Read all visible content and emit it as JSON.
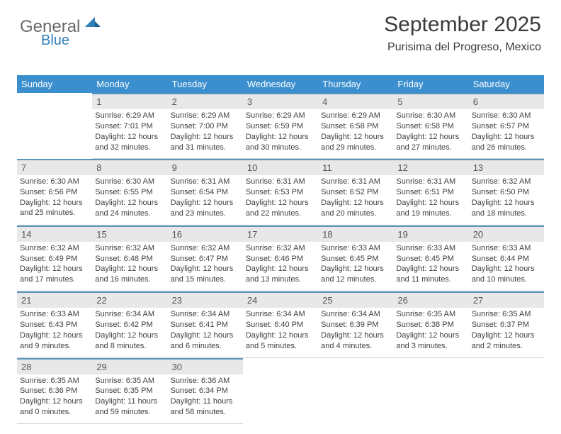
{
  "logo": {
    "text1": "General",
    "text2": "Blue",
    "color_gray": "#6a6a6a",
    "color_blue": "#2e7fbb"
  },
  "header": {
    "title": "September 2025",
    "subtitle": "Purisima del Progreso, Mexico"
  },
  "dow_header": {
    "bg": "#3b8fce",
    "fg": "#ffffff"
  },
  "daynum_bar": {
    "bg": "#e8e8e8",
    "border_top": "#5b94bc"
  },
  "days_of_week": [
    "Sunday",
    "Monday",
    "Tuesday",
    "Wednesday",
    "Thursday",
    "Friday",
    "Saturday"
  ],
  "rows": [
    [
      null,
      {
        "n": "1",
        "sr": "6:29 AM",
        "ss": "7:01 PM",
        "dl": "12 hours and 32 minutes."
      },
      {
        "n": "2",
        "sr": "6:29 AM",
        "ss": "7:00 PM",
        "dl": "12 hours and 31 minutes."
      },
      {
        "n": "3",
        "sr": "6:29 AM",
        "ss": "6:59 PM",
        "dl": "12 hours and 30 minutes."
      },
      {
        "n": "4",
        "sr": "6:29 AM",
        "ss": "6:58 PM",
        "dl": "12 hours and 29 minutes."
      },
      {
        "n": "5",
        "sr": "6:30 AM",
        "ss": "6:58 PM",
        "dl": "12 hours and 27 minutes."
      },
      {
        "n": "6",
        "sr": "6:30 AM",
        "ss": "6:57 PM",
        "dl": "12 hours and 26 minutes."
      }
    ],
    [
      {
        "n": "7",
        "sr": "6:30 AM",
        "ss": "6:56 PM",
        "dl": "12 hours and 25 minutes."
      },
      {
        "n": "8",
        "sr": "6:30 AM",
        "ss": "6:55 PM",
        "dl": "12 hours and 24 minutes."
      },
      {
        "n": "9",
        "sr": "6:31 AM",
        "ss": "6:54 PM",
        "dl": "12 hours and 23 minutes."
      },
      {
        "n": "10",
        "sr": "6:31 AM",
        "ss": "6:53 PM",
        "dl": "12 hours and 22 minutes."
      },
      {
        "n": "11",
        "sr": "6:31 AM",
        "ss": "6:52 PM",
        "dl": "12 hours and 20 minutes."
      },
      {
        "n": "12",
        "sr": "6:31 AM",
        "ss": "6:51 PM",
        "dl": "12 hours and 19 minutes."
      },
      {
        "n": "13",
        "sr": "6:32 AM",
        "ss": "6:50 PM",
        "dl": "12 hours and 18 minutes."
      }
    ],
    [
      {
        "n": "14",
        "sr": "6:32 AM",
        "ss": "6:49 PM",
        "dl": "12 hours and 17 minutes."
      },
      {
        "n": "15",
        "sr": "6:32 AM",
        "ss": "6:48 PM",
        "dl": "12 hours and 16 minutes."
      },
      {
        "n": "16",
        "sr": "6:32 AM",
        "ss": "6:47 PM",
        "dl": "12 hours and 15 minutes."
      },
      {
        "n": "17",
        "sr": "6:32 AM",
        "ss": "6:46 PM",
        "dl": "12 hours and 13 minutes."
      },
      {
        "n": "18",
        "sr": "6:33 AM",
        "ss": "6:45 PM",
        "dl": "12 hours and 12 minutes."
      },
      {
        "n": "19",
        "sr": "6:33 AM",
        "ss": "6:45 PM",
        "dl": "12 hours and 11 minutes."
      },
      {
        "n": "20",
        "sr": "6:33 AM",
        "ss": "6:44 PM",
        "dl": "12 hours and 10 minutes."
      }
    ],
    [
      {
        "n": "21",
        "sr": "6:33 AM",
        "ss": "6:43 PM",
        "dl": "12 hours and 9 minutes."
      },
      {
        "n": "22",
        "sr": "6:34 AM",
        "ss": "6:42 PM",
        "dl": "12 hours and 8 minutes."
      },
      {
        "n": "23",
        "sr": "6:34 AM",
        "ss": "6:41 PM",
        "dl": "12 hours and 6 minutes."
      },
      {
        "n": "24",
        "sr": "6:34 AM",
        "ss": "6:40 PM",
        "dl": "12 hours and 5 minutes."
      },
      {
        "n": "25",
        "sr": "6:34 AM",
        "ss": "6:39 PM",
        "dl": "12 hours and 4 minutes."
      },
      {
        "n": "26",
        "sr": "6:35 AM",
        "ss": "6:38 PM",
        "dl": "12 hours and 3 minutes."
      },
      {
        "n": "27",
        "sr": "6:35 AM",
        "ss": "6:37 PM",
        "dl": "12 hours and 2 minutes."
      }
    ],
    [
      {
        "n": "28",
        "sr": "6:35 AM",
        "ss": "6:36 PM",
        "dl": "12 hours and 0 minutes."
      },
      {
        "n": "29",
        "sr": "6:35 AM",
        "ss": "6:35 PM",
        "dl": "11 hours and 59 minutes."
      },
      {
        "n": "30",
        "sr": "6:36 AM",
        "ss": "6:34 PM",
        "dl": "11 hours and 58 minutes."
      },
      null,
      null,
      null,
      null
    ]
  ],
  "labels": {
    "sunrise": "Sunrise:",
    "sunset": "Sunset:",
    "daylight": "Daylight:"
  }
}
